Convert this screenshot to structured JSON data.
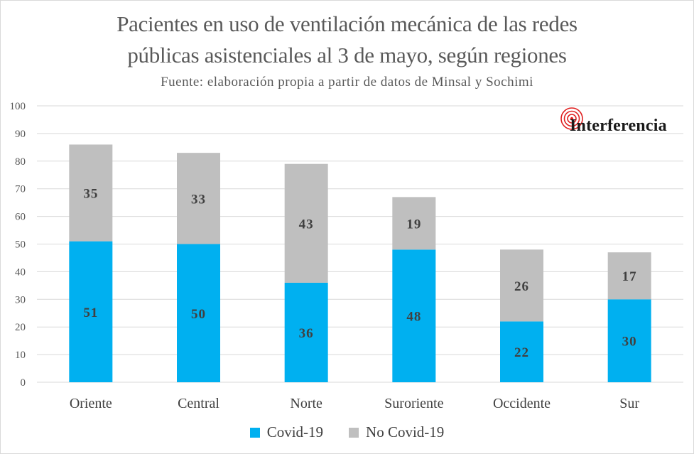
{
  "header": {
    "title_line1": "Pacientes en uso de ventilación mecánica de las redes",
    "title_line2": "públicas asistenciales al 3 de mayo, según regiones",
    "subtitle": "Fuente: elaboración propia a partir de datos de Minsal y Sochimi"
  },
  "logo": {
    "text": "Interferencia",
    "icon": "radar-rings-icon",
    "color": "#e02020"
  },
  "chart_data": {
    "type": "bar",
    "stacked": true,
    "title": "Pacientes en uso de ventilación mecánica de las redes públicas asistenciales al 3 de mayo, según regiones",
    "subtitle": "Fuente: elaboración propia a partir de datos de Minsal y Sochimi",
    "categories": [
      "Oriente",
      "Central",
      "Norte",
      "Suroriente",
      "Occidente",
      "Sur"
    ],
    "series": [
      {
        "name": "Covid-19",
        "values": [
          51,
          50,
          36,
          48,
          22,
          30
        ],
        "color": "#00b0f0"
      },
      {
        "name": "No Covid-19",
        "values": [
          35,
          33,
          43,
          19,
          26,
          17
        ],
        "color": "#bfbfbf"
      }
    ],
    "ylim": [
      0,
      100
    ],
    "yticks": [
      0,
      10,
      20,
      30,
      40,
      50,
      60,
      70,
      80,
      90,
      100
    ],
    "xlabel": "",
    "ylabel": "",
    "grid": true,
    "legend": "bottom-center"
  }
}
